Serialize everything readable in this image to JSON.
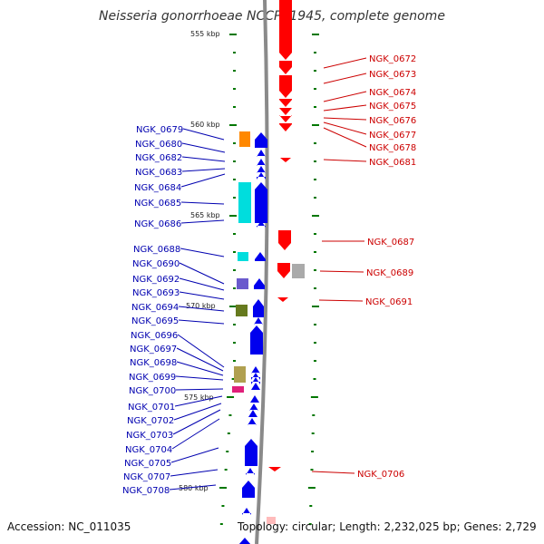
{
  "title": "Neisseria gonorrhoeae NCCP11945, complete genome",
  "footer": {
    "accession": "Accession: NC_011035",
    "summary": "Topology: circular; Length: 2,232,025 bp; Genes: 2,729"
  },
  "scale_labels": [
    "555 kbp",
    "560 kbp",
    "565 kbp",
    "570 kbp",
    "575 kbp",
    "580 kbp"
  ],
  "colors": {
    "forward": "#ff0000",
    "reverse": "#0000ee",
    "backbone": "#8a8a8a",
    "tick": "#007700",
    "label_reverse": "#0000b0",
    "label_forward": "#cc0000"
  },
  "reverse_strand_genes": [
    "NGK_0679",
    "NGK_0680",
    "NGK_0682",
    "NGK_0683",
    "NGK_0684",
    "NGK_0685",
    "NGK_0686",
    "NGK_0688",
    "NGK_0690",
    "NGK_0692",
    "NGK_0693",
    "NGK_0694",
    "NGK_0695",
    "NGK_0696",
    "NGK_0697",
    "NGK_0698",
    "NGK_0699",
    "NGK_0700",
    "NGK_0701",
    "NGK_0702",
    "NGK_0703",
    "NGK_0704",
    "NGK_0705",
    "NGK_0707",
    "NGK_0708"
  ],
  "forward_strand_genes": [
    "NGK_0672",
    "NGK_0673",
    "NGK_0674",
    "NGK_0675",
    "NGK_0676",
    "NGK_0677",
    "NGK_0678",
    "NGK_0681",
    "NGK_0687",
    "NGK_0689",
    "NGK_0691",
    "NGK_0706"
  ]
}
